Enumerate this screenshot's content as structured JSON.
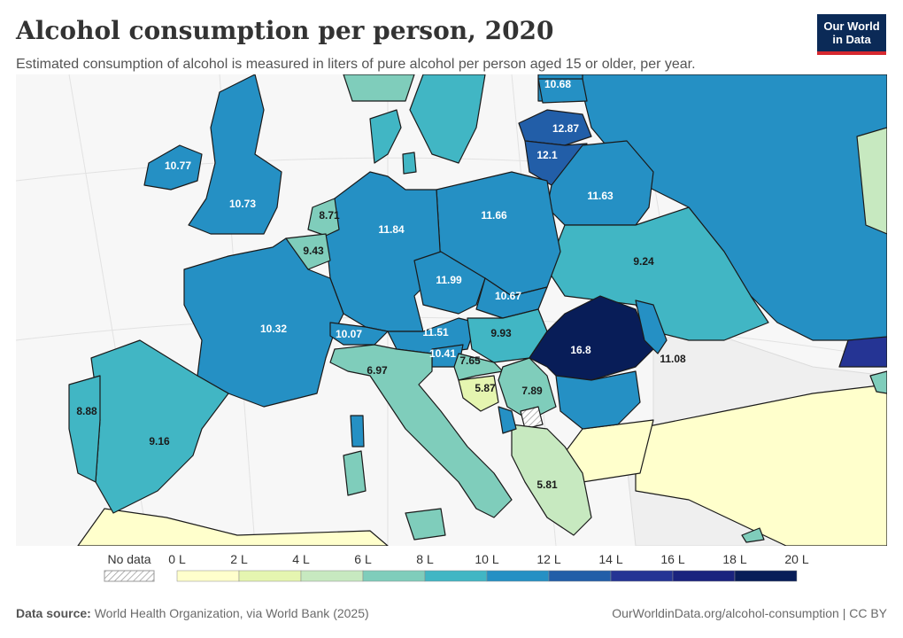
{
  "title": "Alcohol consumption per person, 2020",
  "subtitle": "Estimated consumption of alcohol is measured in liters of pure alcohol per person aged 15 or older, per year.",
  "logo": {
    "line1": "Our World",
    "line2": "in Data"
  },
  "legend": {
    "no_data_label": "No data",
    "ticks": [
      "0 L",
      "2 L",
      "4 L",
      "6 L",
      "8 L",
      "10 L",
      "12 L",
      "14 L",
      "16 L",
      "18 L",
      "20 L"
    ],
    "colors": [
      "#ffffcc",
      "#e5f5b0",
      "#c7e9c0",
      "#7fcdbb",
      "#41b6c4",
      "#2590c4",
      "#225ea8",
      "#253494",
      "#1a237e",
      "#081d58"
    ]
  },
  "map_data": {
    "unit": "liters of pure alcohol per person aged 15+",
    "year": 2020,
    "countries": [
      {
        "name": "Ireland",
        "value": "10.77"
      },
      {
        "name": "United Kingdom",
        "value": "10.73"
      },
      {
        "name": "Netherlands",
        "value": "8.71"
      },
      {
        "name": "Belgium",
        "value": "9.43"
      },
      {
        "name": "France",
        "value": "10.32"
      },
      {
        "name": "Spain",
        "value": "9.16"
      },
      {
        "name": "Portugal",
        "value": "8.88"
      },
      {
        "name": "Germany",
        "value": "11.84"
      },
      {
        "name": "Switzerland",
        "value": "10.07"
      },
      {
        "name": "Italy",
        "value": "6.97"
      },
      {
        "name": "Poland",
        "value": "11.66"
      },
      {
        "name": "Czechia",
        "value": "11.99"
      },
      {
        "name": "Slovakia",
        "value": "10.67"
      },
      {
        "name": "Austria",
        "value": "11.51"
      },
      {
        "name": "Slovenia",
        "value": "10.41"
      },
      {
        "name": "Hungary",
        "value": "9.93"
      },
      {
        "name": "Croatia",
        "value": "7.65"
      },
      {
        "name": "Bosnia and Herzegovina",
        "value": "5.87"
      },
      {
        "name": "Serbia",
        "value": "7.89"
      },
      {
        "name": "Romania",
        "value": "16.8"
      },
      {
        "name": "Moldova",
        "value": "11.08"
      },
      {
        "name": "North Macedonia",
        "value": "5.81"
      },
      {
        "name": "Lithuania",
        "value": "12.87"
      },
      {
        "name": "Latvia",
        "value": "12.1"
      },
      {
        "name": "Estonia",
        "value": "10.68"
      },
      {
        "name": "Belarus",
        "value": "11.63"
      },
      {
        "name": "Ukraine",
        "value": "9.24"
      }
    ]
  },
  "footer": {
    "source_label": "Data source:",
    "source_text": "World Health Organization, via World Bank (2025)",
    "link": "OurWorldinData.org/alcohol-consumption | CC BY"
  }
}
